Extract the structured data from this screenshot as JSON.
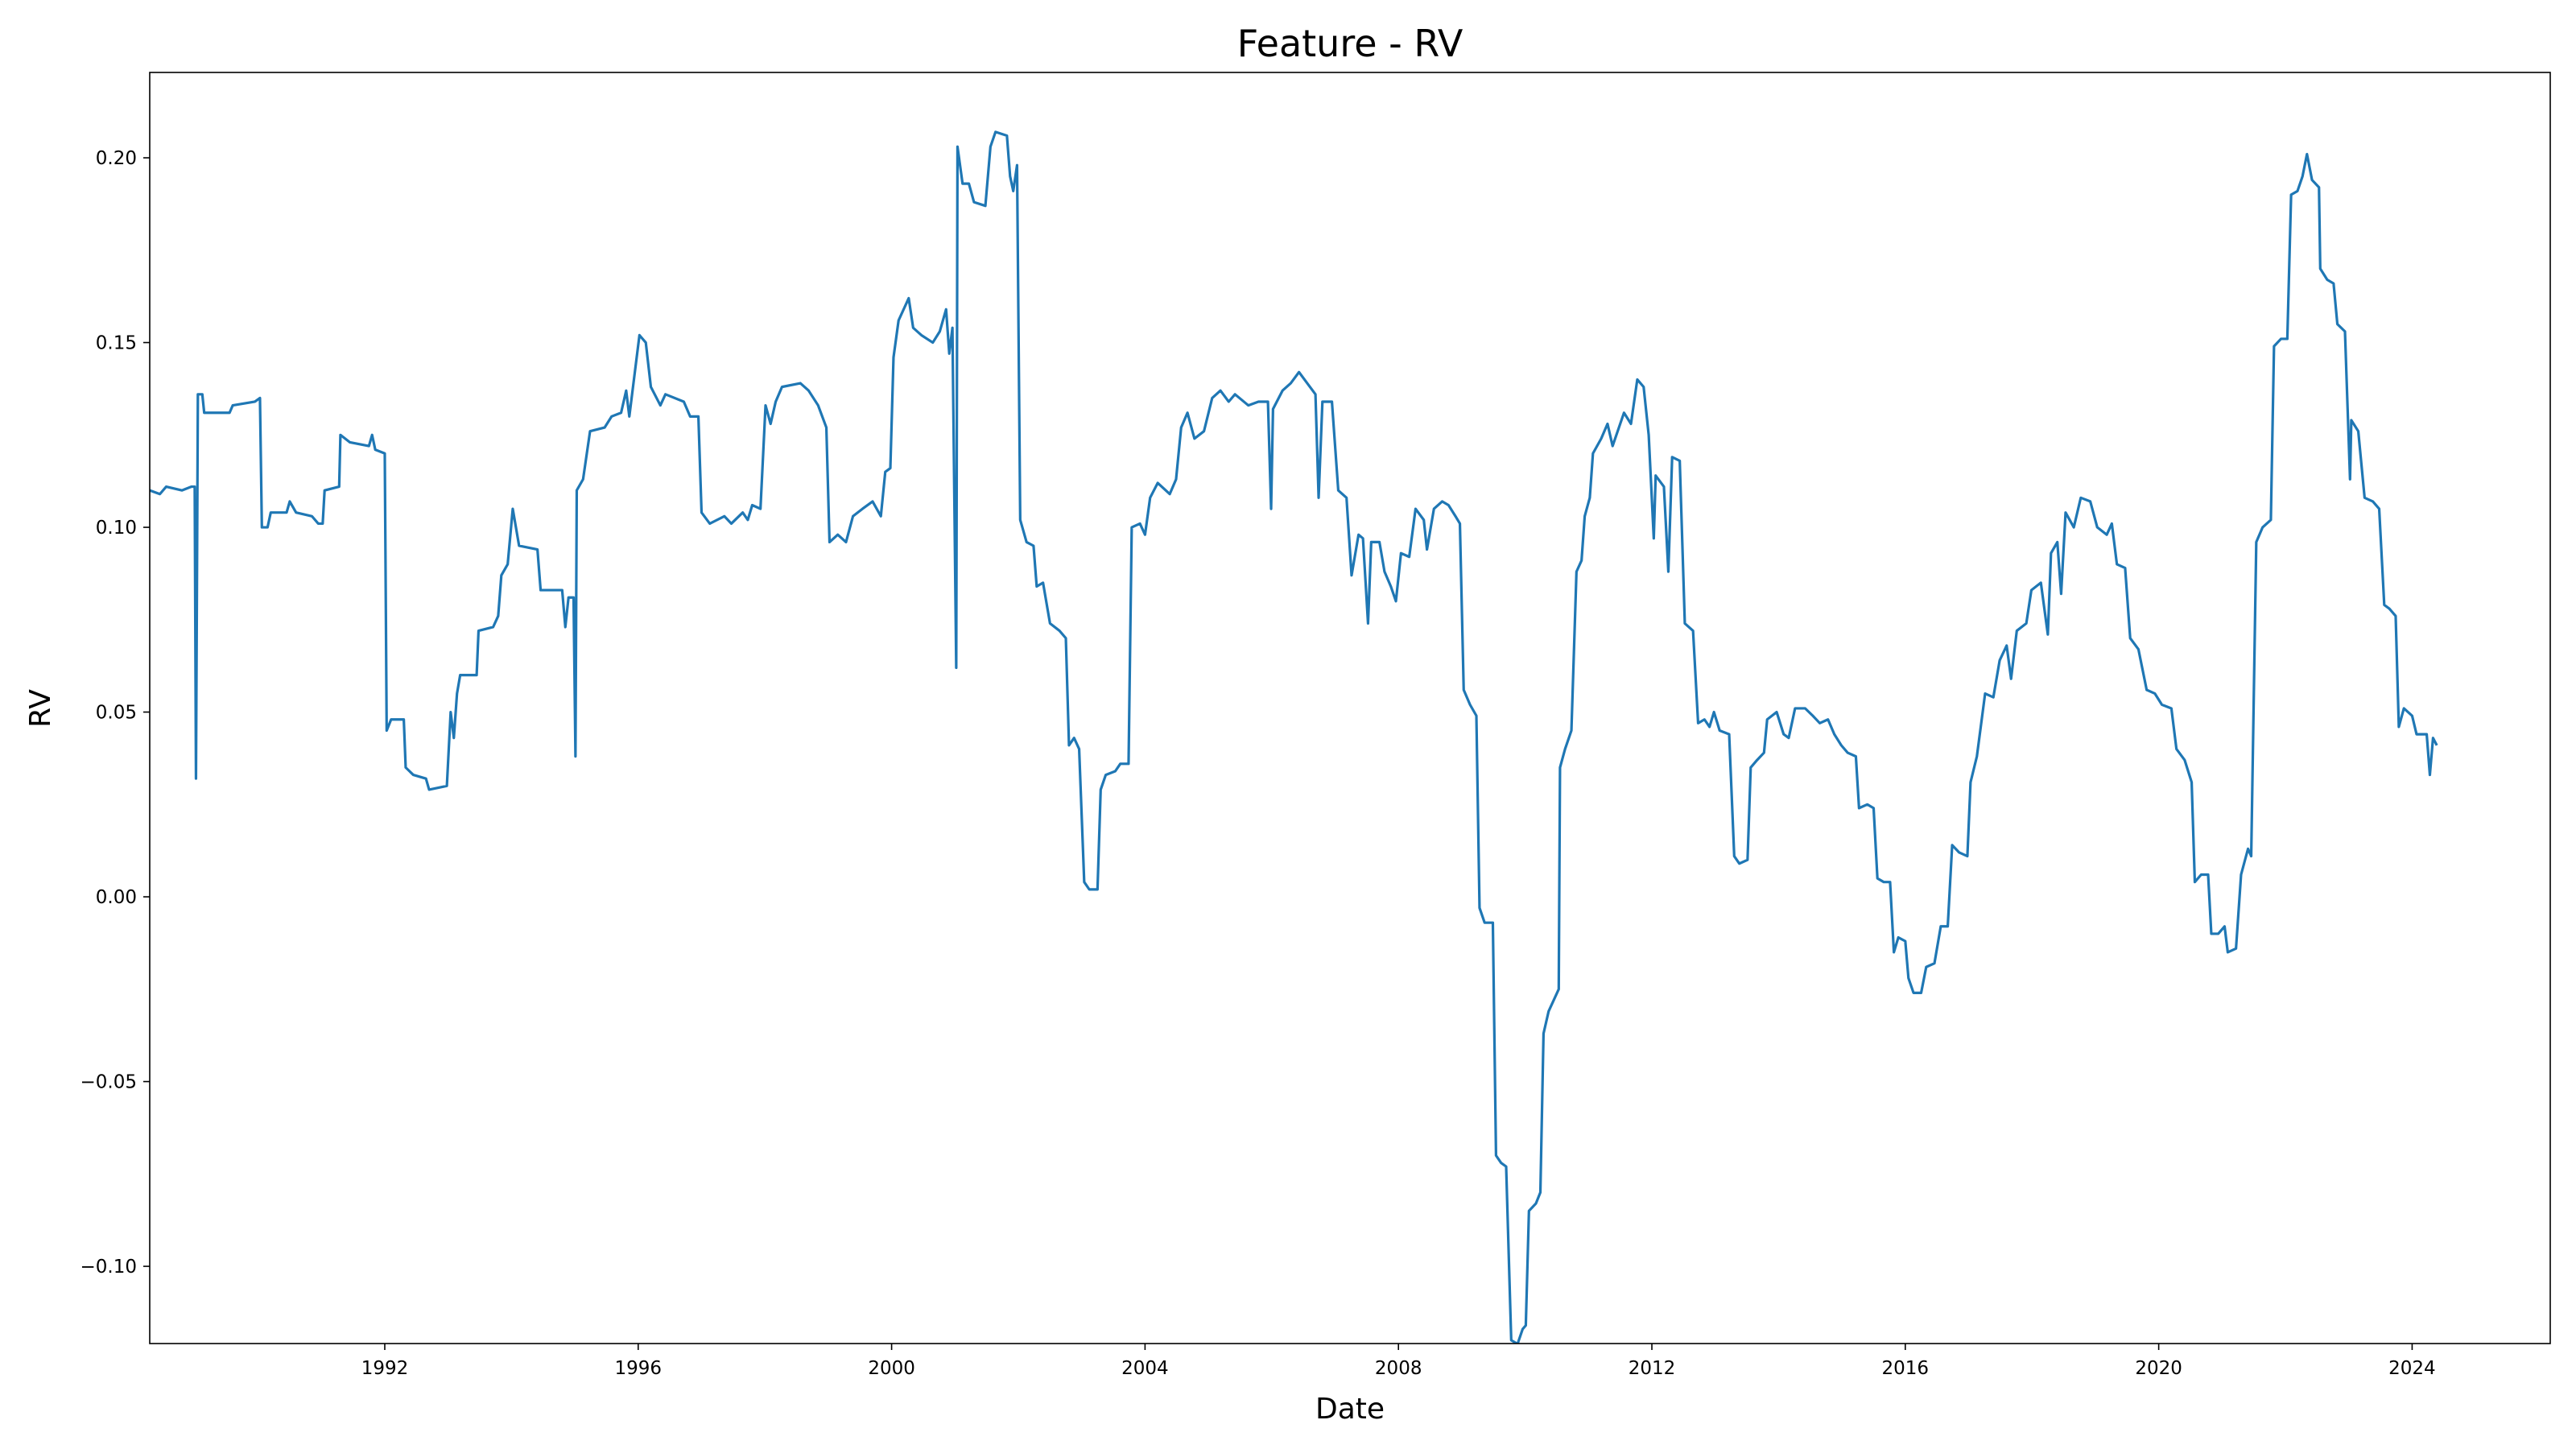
{
  "chart_data": {
    "type": "line",
    "title": "Feature - RV",
    "xlabel": "Date",
    "ylabel": "RV",
    "color": "#1f77b4",
    "x": [
      1988.29,
      1988.45,
      1988.55,
      1988.8,
      1988.95,
      1989.0,
      1989.02,
      1989.05,
      1989.12,
      1989.15,
      1989.55,
      1989.6,
      1989.95,
      1990.03,
      1990.06,
      1990.15,
      1990.2,
      1990.45,
      1990.5,
      1990.6,
      1990.85,
      1990.95,
      1991.02,
      1991.05,
      1991.28,
      1991.3,
      1991.45,
      1991.75,
      1991.8,
      1991.85,
      1992.0,
      1992.03,
      1992.1,
      1992.3,
      1992.33,
      1992.45,
      1992.65,
      1992.7,
      1992.98,
      1993.04,
      1993.09,
      1993.14,
      1993.19,
      1993.45,
      1993.48,
      1993.71,
      1993.79,
      1993.84,
      1993.94,
      1994.02,
      1994.12,
      1994.41,
      1994.46,
      1994.8,
      1994.85,
      1994.9,
      1994.98,
      1995.01,
      1995.03,
      1995.13,
      1995.24,
      1995.47,
      1995.58,
      1995.73,
      1995.81,
      1995.86,
      1996.02,
      1996.12,
      1996.2,
      1996.35,
      1996.43,
      1996.72,
      1996.82,
      1996.95,
      1997.0,
      1997.13,
      1997.36,
      1997.47,
      1997.65,
      1997.73,
      1997.8,
      1997.93,
      1998.01,
      1998.09,
      1998.17,
      1998.27,
      1998.56,
      1998.69,
      1998.84,
      1998.97,
      1999.02,
      1999.15,
      1999.28,
      1999.39,
      1999.54,
      1999.7,
      1999.83,
      1999.9,
      1999.98,
      2000.03,
      2000.11,
      2000.27,
      2000.34,
      2000.47,
      2000.65,
      2000.76,
      2000.86,
      2000.91,
      2000.96,
      2001.02,
      2001.04,
      2001.12,
      2001.22,
      2001.3,
      2001.48,
      2001.56,
      2001.64,
      2001.82,
      2001.87,
      2001.92,
      2001.98,
      2002.03,
      2002.13,
      2002.24,
      2002.29,
      2002.39,
      2002.5,
      2002.65,
      2002.75,
      2002.8,
      2002.88,
      2002.96,
      2003.04,
      2003.12,
      2003.25,
      2003.3,
      2003.38,
      2003.53,
      2003.61,
      2003.74,
      2003.79,
      2003.92,
      2004.0,
      2004.08,
      2004.2,
      2004.39,
      2004.49,
      2004.57,
      2004.67,
      2004.78,
      2004.93,
      2005.06,
      2005.19,
      2005.32,
      2005.42,
      2005.63,
      2005.79,
      2005.94,
      2005.99,
      2006.02,
      2006.17,
      2006.3,
      2006.43,
      2006.56,
      2006.69,
      2006.74,
      2006.8,
      2006.95,
      2007.05,
      2007.18,
      2007.26,
      2007.37,
      2007.44,
      2007.52,
      2007.57,
      2007.7,
      2007.78,
      2007.88,
      2007.96,
      2008.04,
      2008.17,
      2008.27,
      2008.4,
      2008.45,
      2008.56,
      2008.69,
      2008.79,
      2008.9,
      2008.97,
      2009.03,
      2009.13,
      2009.23,
      2009.28,
      2009.36,
      2009.49,
      2009.54,
      2009.62,
      2009.7,
      2009.78,
      2009.88,
      2009.96,
      2010.01,
      2010.06,
      2010.17,
      2010.24,
      2010.29,
      2010.37,
      2010.45,
      2010.53,
      2010.55,
      2010.63,
      2010.73,
      2010.81,
      2010.89,
      2010.94,
      2011.02,
      2011.07,
      2011.2,
      2011.3,
      2011.38,
      2011.48,
      2011.56,
      2011.67,
      2011.77,
      2011.87,
      2011.95,
      2012.03,
      2012.06,
      2012.19,
      2012.26,
      2012.32,
      2012.44,
      2012.52,
      2012.65,
      2012.73,
      2012.83,
      2012.91,
      2012.98,
      2013.07,
      2013.22,
      2013.3,
      2013.38,
      2013.51,
      2013.56,
      2013.66,
      2013.77,
      2013.82,
      2013.97,
      2014.08,
      2014.16,
      2014.26,
      2014.42,
      2014.54,
      2014.65,
      2014.78,
      2014.88,
      2014.99,
      2015.09,
      2015.22,
      2015.27,
      2015.4,
      2015.5,
      2015.56,
      2015.66,
      2015.76,
      2015.82,
      2015.89,
      2016.0,
      2016.05,
      2016.13,
      2016.25,
      2016.33,
      2016.46,
      2016.56,
      2016.67,
      2016.74,
      2016.85,
      2016.98,
      2017.03,
      2017.13,
      2017.26,
      2017.39,
      2017.49,
      2017.6,
      2017.67,
      2017.76,
      2017.91,
      2017.99,
      2018.14,
      2018.25,
      2018.3,
      2018.4,
      2018.46,
      2018.53,
      2018.66,
      2018.77,
      2018.92,
      2019.03,
      2019.18,
      2019.26,
      2019.34,
      2019.47,
      2019.55,
      2019.68,
      2019.81,
      2019.94,
      2020.05,
      2020.2,
      2020.28,
      2020.41,
      2020.52,
      2020.57,
      2020.67,
      2020.78,
      2020.83,
      2020.94,
      2021.04,
      2021.09,
      2021.22,
      2021.3,
      2021.41,
      2021.46,
      2021.54,
      2021.64,
      2021.77,
      2021.82,
      2021.93,
      2022.03,
      2022.09,
      2022.19,
      2022.27,
      2022.34,
      2022.42,
      2022.53,
      2022.55,
      2022.66,
      2022.76,
      2022.82,
      2022.94,
      2023.02,
      2023.04,
      2023.15,
      2023.25,
      2023.38,
      2023.48,
      2023.56,
      2023.64,
      2023.74,
      2023.79,
      2023.87,
      2024.0,
      2024.07,
      2024.23,
      2024.28,
      2024.33,
      2024.39
    ],
    "values": [
      0.11,
      0.109,
      0.111,
      0.11,
      0.111,
      0.111,
      0.032,
      0.136,
      0.136,
      0.131,
      0.131,
      0.133,
      0.134,
      0.135,
      0.1,
      0.1,
      0.104,
      0.104,
      0.107,
      0.104,
      0.103,
      0.101,
      0.101,
      0.11,
      0.111,
      0.125,
      0.123,
      0.122,
      0.125,
      0.121,
      0.12,
      0.045,
      0.048,
      0.048,
      0.035,
      0.033,
      0.032,
      0.029,
      0.03,
      0.05,
      0.043,
      0.055,
      0.06,
      0.06,
      0.072,
      0.073,
      0.076,
      0.087,
      0.09,
      0.105,
      0.095,
      0.094,
      0.083,
      0.083,
      0.073,
      0.081,
      0.081,
      0.038,
      0.11,
      0.113,
      0.126,
      0.127,
      0.13,
      0.131,
      0.137,
      0.13,
      0.152,
      0.15,
      0.138,
      0.133,
      0.136,
      0.134,
      0.13,
      0.13,
      0.104,
      0.101,
      0.103,
      0.101,
      0.104,
      0.102,
      0.106,
      0.105,
      0.133,
      0.128,
      0.134,
      0.138,
      0.139,
      0.137,
      0.133,
      0.127,
      0.096,
      0.098,
      0.096,
      0.103,
      0.105,
      0.107,
      0.103,
      0.115,
      0.116,
      0.146,
      0.156,
      0.162,
      0.154,
      0.152,
      0.15,
      0.153,
      0.159,
      0.147,
      0.154,
      0.062,
      0.203,
      0.193,
      0.193,
      0.188,
      0.187,
      0.203,
      0.207,
      0.206,
      0.195,
      0.191,
      0.198,
      0.102,
      0.096,
      0.095,
      0.084,
      0.085,
      0.074,
      0.072,
      0.07,
      0.041,
      0.043,
      0.04,
      0.004,
      0.002,
      0.002,
      0.029,
      0.033,
      0.034,
      0.036,
      0.036,
      0.1,
      0.101,
      0.098,
      0.108,
      0.112,
      0.109,
      0.113,
      0.127,
      0.131,
      0.124,
      0.126,
      0.135,
      0.137,
      0.134,
      0.136,
      0.133,
      0.134,
      0.134,
      0.105,
      0.132,
      0.137,
      0.139,
      0.142,
      0.139,
      0.136,
      0.108,
      0.134,
      0.134,
      0.11,
      0.108,
      0.087,
      0.098,
      0.097,
      0.074,
      0.096,
      0.096,
      0.088,
      0.084,
      0.08,
      0.093,
      0.092,
      0.105,
      0.102,
      0.094,
      0.105,
      0.107,
      0.106,
      0.103,
      0.101,
      0.056,
      0.052,
      0.049,
      -0.003,
      -0.007,
      -0.007,
      -0.07,
      -0.072,
      -0.073,
      -0.12,
      -0.121,
      -0.117,
      -0.116,
      -0.085,
      -0.083,
      -0.08,
      -0.037,
      -0.031,
      -0.028,
      -0.025,
      0.035,
      0.04,
      0.045,
      0.088,
      0.091,
      0.103,
      0.108,
      0.12,
      0.124,
      0.128,
      0.122,
      0.127,
      0.131,
      0.128,
      0.14,
      0.138,
      0.125,
      0.097,
      0.114,
      0.111,
      0.088,
      0.119,
      0.118,
      0.074,
      0.072,
      0.047,
      0.048,
      0.046,
      0.05,
      0.045,
      0.044,
      0.011,
      0.009,
      0.01,
      0.035,
      0.037,
      0.039,
      0.048,
      0.05,
      0.044,
      0.043,
      0.051,
      0.051,
      0.049,
      0.047,
      0.048,
      0.044,
      0.041,
      0.039,
      0.038,
      0.024,
      0.025,
      0.024,
      0.005,
      0.004,
      0.004,
      -0.015,
      -0.011,
      -0.012,
      -0.022,
      -0.026,
      -0.026,
      -0.019,
      -0.018,
      -0.008,
      -0.008,
      0.014,
      0.012,
      0.011,
      0.031,
      0.038,
      0.055,
      0.054,
      0.064,
      0.068,
      0.059,
      0.072,
      0.074,
      0.083,
      0.085,
      0.071,
      0.093,
      0.096,
      0.082,
      0.104,
      0.1,
      0.108,
      0.107,
      0.1,
      0.098,
      0.101,
      0.09,
      0.089,
      0.07,
      0.067,
      0.056,
      0.055,
      0.052,
      0.051,
      0.04,
      0.037,
      0.031,
      0.004,
      0.006,
      0.006,
      -0.01,
      -0.01,
      -0.008,
      -0.015,
      -0.014,
      0.006,
      0.013,
      0.011,
      0.096,
      0.1,
      0.102,
      0.149,
      0.151,
      0.151,
      0.19,
      0.191,
      0.195,
      0.201,
      0.194,
      0.192,
      0.17,
      0.167,
      0.166,
      0.155,
      0.153,
      0.113,
      0.129,
      0.126,
      0.108,
      0.107,
      0.105,
      0.079,
      0.078,
      0.076,
      0.046,
      0.051,
      0.049,
      0.044,
      0.044,
      0.033,
      0.043,
      0.041
    ],
    "xlim": [
      1988.29,
      2026.18
    ],
    "ylim": [
      -0.1209,
      0.2231
    ],
    "xticks": [
      1992,
      1996,
      2000,
      2004,
      2008,
      2012,
      2016,
      2020,
      2024
    ],
    "yticks": [
      {
        "value": -0.1,
        "label": "−0.10"
      },
      {
        "value": -0.05,
        "label": "−0.05"
      },
      {
        "value": 0,
        "label": "0.00"
      },
      {
        "value": 0.05,
        "label": "0.05"
      },
      {
        "value": 0.1,
        "label": "0.10"
      },
      {
        "value": 0.15,
        "label": "0.15"
      },
      {
        "value": 0.2,
        "label": "0.20"
      }
    ],
    "grid": false
  }
}
